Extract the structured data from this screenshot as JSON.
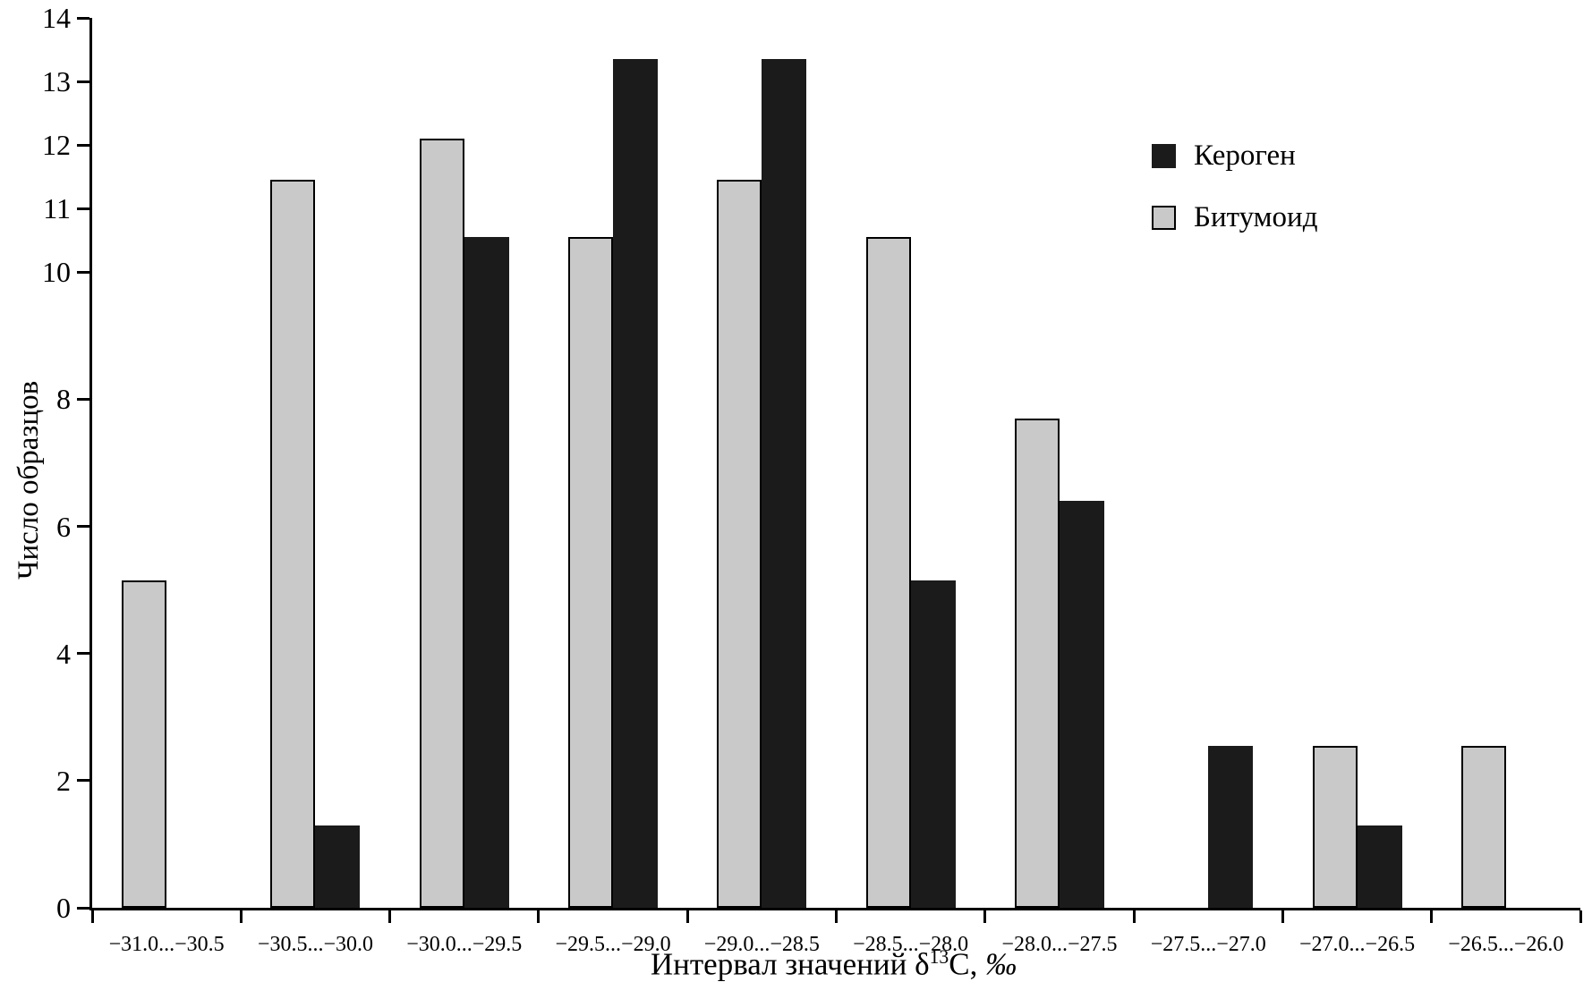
{
  "figure": {
    "background": "#ffffff",
    "axis_color": "#000000"
  },
  "chart_data": {
    "type": "bar",
    "title": "",
    "ylabel": "Число образцов",
    "xlabel": {
      "pre": "Интервал значений δ",
      "sup": "13",
      "post": "C, ",
      "permille": "‰"
    },
    "categories": [
      "−31.0...−30.5",
      "−30.5...−30.0",
      "−30.0...−29.5",
      "−29.5...−29.0",
      "−29.0...−28.5",
      "−28.5...−28.0",
      "−28.0...−27.5",
      "−27.5...−27.0",
      "−27.0...−26.5",
      "−26.5...−26.0"
    ],
    "series": [
      {
        "name": "Кероген",
        "key": "kerogen",
        "color": "#1b1b1b",
        "values": [
          0,
          1.3,
          10.55,
          13.35,
          13.35,
          5.15,
          6.4,
          2.55,
          1.3,
          0
        ]
      },
      {
        "name": "Битумоид",
        "key": "bitumoid",
        "color": "#c9c9c9",
        "values": [
          5.15,
          11.45,
          12.1,
          10.55,
          11.45,
          10.55,
          7.7,
          0,
          2.55,
          2.55
        ]
      }
    ],
    "ylim": [
      0,
      14
    ],
    "yticks": [
      0,
      2,
      4,
      6,
      8,
      10,
      11,
      12,
      13,
      14
    ],
    "grid": false,
    "legend_position": "top-right",
    "bar_order_left_to_right": [
      "bitumoid",
      "kerogen"
    ]
  }
}
